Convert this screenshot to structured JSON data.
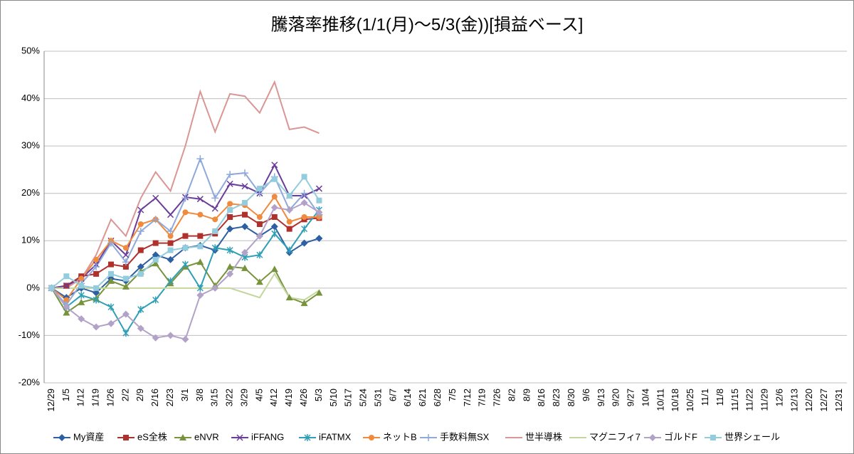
{
  "chart_data": {
    "type": "line",
    "title": "騰落率推移(1/1(月)～5/3(金))[損益ベース]",
    "categories": [
      "12/29",
      "1/5",
      "1/12",
      "1/19",
      "1/26",
      "2/2",
      "2/9",
      "2/16",
      "2/23",
      "3/1",
      "3/8",
      "3/15",
      "3/22",
      "3/29",
      "4/5",
      "4/12",
      "4/19",
      "4/26",
      "5/3",
      "5/10",
      "5/17",
      "5/24",
      "5/31",
      "6/7",
      "6/14",
      "6/21",
      "6/28",
      "7/5",
      "7/12",
      "7/19",
      "7/26",
      "8/2",
      "8/9",
      "8/16",
      "8/23",
      "8/30",
      "9/6",
      "9/13",
      "9/20",
      "9/27",
      "10/4",
      "10/11",
      "10/18",
      "10/25",
      "11/1",
      "11/8",
      "11/15",
      "11/22",
      "11/29",
      "12/6",
      "12/13",
      "12/20",
      "12/27",
      "12/31"
    ],
    "ylim": [
      -20,
      50
    ],
    "yticks": [
      {
        "value": -20,
        "label": "-20%"
      },
      {
        "value": -10,
        "label": "-10%"
      },
      {
        "value": 0,
        "label": "0%"
      },
      {
        "value": 10,
        "label": "10%"
      },
      {
        "value": 20,
        "label": "20%"
      },
      {
        "value": 30,
        "label": "30%"
      },
      {
        "value": 40,
        "label": "40%"
      },
      {
        "value": 50,
        "label": "50%"
      }
    ],
    "grid": true,
    "legend": "bottom",
    "series": [
      {
        "name": "My資産",
        "color": "#2e5fa3",
        "marker": "diamond",
        "values": [
          0,
          -2,
          0,
          -1,
          2,
          1.5,
          4.5,
          7,
          6,
          8.5,
          9,
          8,
          12.5,
          13,
          11,
          13,
          7.5,
          9.5,
          10.5,
          null,
          null,
          null,
          null,
          null,
          null,
          null,
          null,
          null,
          null,
          null,
          null,
          null,
          null,
          null,
          null,
          null,
          null,
          null,
          null,
          null,
          null,
          null,
          null,
          null,
          null,
          null,
          null,
          null,
          null,
          null,
          null,
          null,
          null,
          null
        ]
      },
      {
        "name": "eS全株",
        "color": "#b0302c",
        "marker": "square",
        "values": [
          0,
          0.5,
          2.5,
          3,
          5,
          4.5,
          8,
          9.5,
          9.5,
          11,
          11,
          11.5,
          15,
          15.5,
          13.5,
          15,
          12.5,
          14.5,
          14.8,
          null,
          null,
          null,
          null,
          null,
          null,
          null,
          null,
          null,
          null,
          null,
          null,
          null,
          null,
          null,
          null,
          null,
          null,
          null,
          null,
          null,
          null,
          null,
          null,
          null,
          null,
          null,
          null,
          null,
          null,
          null,
          null,
          null,
          null,
          null
        ]
      },
      {
        "name": "eNVR",
        "color": "#77933c",
        "marker": "triangle",
        "values": [
          0,
          -5.2,
          -3,
          -2.2,
          1.5,
          0.3,
          3.5,
          5.2,
          1,
          4.5,
          5.5,
          0.5,
          4.5,
          4.2,
          1.3,
          4,
          -2,
          -3.2,
          -1,
          null,
          null,
          null,
          null,
          null,
          null,
          null,
          null,
          null,
          null,
          null,
          null,
          null,
          null,
          null,
          null,
          null,
          null,
          null,
          null,
          null,
          null,
          null,
          null,
          null,
          null,
          null,
          null,
          null,
          null,
          null,
          null,
          null,
          null,
          null
        ]
      },
      {
        "name": "iFFANG",
        "color": "#6a3d9a",
        "marker": "x",
        "values": [
          0,
          0.5,
          2,
          5,
          10,
          7,
          16.5,
          19,
          15.5,
          19.2,
          18.8,
          16.8,
          22,
          21.5,
          20,
          26,
          19.5,
          19.5,
          21,
          null,
          null,
          null,
          null,
          null,
          null,
          null,
          null,
          null,
          null,
          null,
          null,
          null,
          null,
          null,
          null,
          null,
          null,
          null,
          null,
          null,
          null,
          null,
          null,
          null,
          null,
          null,
          null,
          null,
          null,
          null,
          null,
          null,
          null,
          null
        ]
      },
      {
        "name": "iFATMX",
        "color": "#2f9fb5",
        "marker": "star",
        "values": [
          0,
          -4,
          -1.5,
          -2.5,
          -4,
          -9.5,
          -4.5,
          -2.5,
          1.5,
          5,
          0,
          8.5,
          8,
          6.5,
          7,
          11.5,
          8,
          12.5,
          16.5,
          null,
          null,
          null,
          null,
          null,
          null,
          null,
          null,
          null,
          null,
          null,
          null,
          null,
          null,
          null,
          null,
          null,
          null,
          null,
          null,
          null,
          null,
          null,
          null,
          null,
          null,
          null,
          null,
          null,
          null,
          null,
          null,
          null,
          null,
          null
        ]
      },
      {
        "name": "ネットB",
        "color": "#f08a3c",
        "marker": "circle",
        "values": [
          0,
          -2.5,
          2,
          6,
          10,
          8.5,
          13.5,
          14.5,
          11,
          16,
          15.5,
          14.5,
          17.8,
          17.5,
          15,
          19.3,
          14,
          15,
          15,
          null,
          null,
          null,
          null,
          null,
          null,
          null,
          null,
          null,
          null,
          null,
          null,
          null,
          null,
          null,
          null,
          null,
          null,
          null,
          null,
          null,
          null,
          null,
          null,
          null,
          null,
          null,
          null,
          null,
          null,
          null,
          null,
          null,
          null,
          null
        ]
      },
      {
        "name": "手数料無SX",
        "color": "#8ea9db",
        "marker": "plus",
        "values": [
          0,
          -3.5,
          1,
          4.5,
          9.5,
          5.5,
          12,
          14.5,
          12,
          19,
          27.3,
          19,
          24,
          24.3,
          20,
          23.5,
          16.5,
          20,
          15.5,
          null,
          null,
          null,
          null,
          null,
          null,
          null,
          null,
          null,
          null,
          null,
          null,
          null,
          null,
          null,
          null,
          null,
          null,
          null,
          null,
          null,
          null,
          null,
          null,
          null,
          null,
          null,
          null,
          null,
          null,
          null,
          null,
          null,
          null,
          null
        ]
      },
      {
        "name": "世半導株",
        "color": "#d99694",
        "marker": "none",
        "values": [
          0,
          0,
          2,
          7,
          14.5,
          11,
          19,
          24.5,
          20.5,
          30,
          41.5,
          33,
          41,
          40.5,
          37,
          43.5,
          33.5,
          34,
          32.7,
          null,
          null,
          null,
          null,
          null,
          null,
          null,
          null,
          null,
          null,
          null,
          null,
          null,
          null,
          null,
          null,
          null,
          null,
          null,
          null,
          null,
          null,
          null,
          null,
          null,
          null,
          null,
          null,
          null,
          null,
          null,
          null,
          null,
          null,
          null
        ]
      },
      {
        "name": "マグニフィ7",
        "color": "#c3d69b",
        "marker": "none",
        "values": [
          0,
          0,
          0,
          0,
          0,
          0,
          0,
          0,
          0,
          0,
          0,
          0,
          0,
          -1,
          -2,
          3,
          -2,
          -2.5,
          -0.5,
          null,
          null,
          null,
          null,
          null,
          null,
          null,
          null,
          null,
          null,
          null,
          null,
          null,
          null,
          null,
          null,
          null,
          null,
          null,
          null,
          null,
          null,
          null,
          null,
          null,
          null,
          null,
          null,
          null,
          null,
          null,
          null,
          null,
          null,
          null
        ]
      },
      {
        "name": "ゴルドF",
        "color": "#b3a2c7",
        "marker": "diamond",
        "values": [
          0,
          -4,
          -6.5,
          -8.2,
          -7.5,
          -5.5,
          -8.5,
          -10.5,
          -10,
          -10.8,
          -1.5,
          0,
          3,
          7.5,
          11,
          17,
          16.5,
          18,
          16,
          null,
          null,
          null,
          null,
          null,
          null,
          null,
          null,
          null,
          null,
          null,
          null,
          null,
          null,
          null,
          null,
          null,
          null,
          null,
          null,
          null,
          null,
          null,
          null,
          null,
          null,
          null,
          null,
          null,
          null,
          null,
          null,
          null,
          null,
          null
        ]
      },
      {
        "name": "世界シェール",
        "color": "#93cddd",
        "marker": "square",
        "values": [
          0,
          2.5,
          0.5,
          0,
          3,
          2,
          3,
          6,
          8,
          8.5,
          8.8,
          12,
          16.5,
          18,
          21,
          23,
          19.5,
          23.5,
          18.5,
          null,
          null,
          null,
          null,
          null,
          null,
          null,
          null,
          null,
          null,
          null,
          null,
          null,
          null,
          null,
          null,
          null,
          null,
          null,
          null,
          null,
          null,
          null,
          null,
          null,
          null,
          null,
          null,
          null,
          null,
          null,
          null,
          null,
          null,
          null
        ]
      }
    ]
  }
}
